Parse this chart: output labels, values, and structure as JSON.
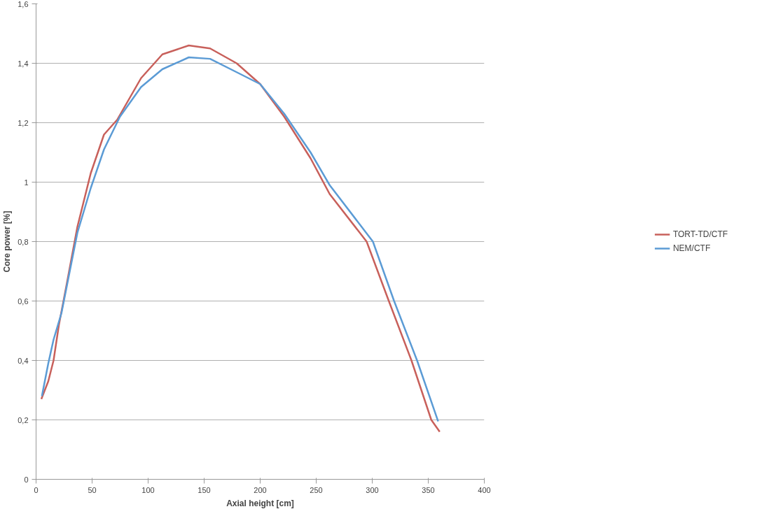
{
  "chart_data": {
    "type": "line",
    "xlabel": "Axial height [cm]",
    "ylabel": "Core power [%]",
    "xlim": [
      0,
      400
    ],
    "xticks": [
      0,
      50,
      100,
      150,
      200,
      250,
      300,
      350,
      400
    ],
    "ylim": [
      0,
      1.6
    ],
    "yticks": [
      0,
      {
        "value": 0.2,
        "label": "0,2"
      },
      {
        "value": 0.4,
        "label": "0,4"
      },
      {
        "value": 0.6,
        "label": "0,6"
      },
      {
        "value": 0.8,
        "label": "0,8"
      },
      1,
      {
        "value": 1.2,
        "label": "1,2"
      },
      {
        "value": 1.4,
        "label": "1,4"
      },
      {
        "value": 1.6,
        "label": "1,6"
      }
    ],
    "grid": "y",
    "legend": "right",
    "marker": "none",
    "line_style": "solid",
    "series": [
      {
        "name": "TORT-TD/CTF",
        "color": "#c8605b",
        "x": [
          4.7,
          10.9,
          15.6,
          20.4,
          27.5,
          36.9,
          48.8,
          60.6,
          72.4,
          93.7,
          112.7,
          136.3,
          155.3,
          179,
          200,
          221.5,
          245,
          262,
          295,
          314.8,
          335,
          352.7,
          360.2
        ],
        "values": [
          0.27,
          0.33,
          0.4,
          0.52,
          0.66,
          0.85,
          1.03,
          1.16,
          1.21,
          1.35,
          1.43,
          1.46,
          1.45,
          1.4,
          1.33,
          1.22,
          1.08,
          0.96,
          0.8,
          0.6,
          0.4,
          0.2,
          0.16
        ]
      },
      {
        "name": "NEM/CTF",
        "color": "#5b9bd5",
        "x": [
          5.2,
          10.9,
          15.6,
          22.7,
          36.9,
          48.8,
          60.6,
          74.8,
          93.7,
          112.7,
          136.3,
          155.3,
          179,
          200,
          221.5,
          245,
          262,
          300.6,
          319.5,
          340,
          358.8
        ],
        "values": [
          0.28,
          0.39,
          0.47,
          0.56,
          0.83,
          0.98,
          1.11,
          1.22,
          1.32,
          1.38,
          1.42,
          1.415,
          1.37,
          1.33,
          1.23,
          1.1,
          0.99,
          0.8,
          0.6,
          0.4,
          0.195
        ]
      }
    ]
  }
}
